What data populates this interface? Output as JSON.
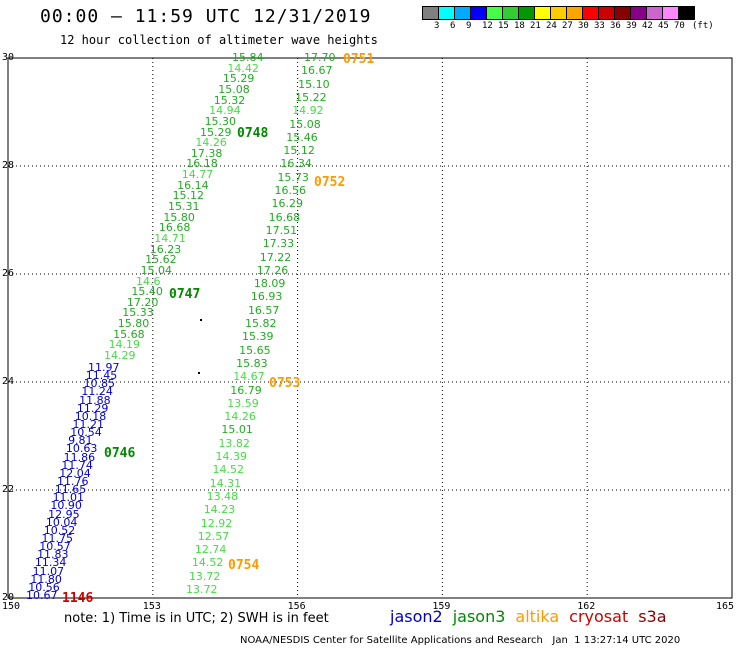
{
  "title": "00:00 – 11:59 UTC 12/31/2019",
  "subtitle": "12 hour collection of altimeter wave heights",
  "colorbar": {
    "labels": [
      "3",
      "6",
      "9",
      "12",
      "15",
      "18",
      "21",
      "24",
      "27",
      "30",
      "33",
      "36",
      "39",
      "42",
      "45",
      "70",
      "(ft)"
    ],
    "colors": [
      "#808080",
      "#00ffff",
      "#00aaff",
      "#0000ff",
      "#44ff44",
      "#33cc33",
      "#009900",
      "#ffff00",
      "#ffcc00",
      "#ffa500",
      "#ff0000",
      "#cc0000",
      "#880000",
      "#880088",
      "#cc66cc",
      "#ff88ff",
      "#000000"
    ]
  },
  "axes": {
    "lat_ticks": [
      "30",
      "28",
      "26",
      "24",
      "22",
      "20"
    ],
    "lon_ticks": [
      "150",
      "153",
      "156",
      "159",
      "162",
      "165"
    ]
  },
  "passes": [
    {
      "id": "0751",
      "color": "#ff9900"
    },
    {
      "id": "0748",
      "color": "#008800"
    },
    {
      "id": "0752",
      "color": "#ff9900"
    },
    {
      "id": "0747",
      "color": "#008800"
    },
    {
      "id": "0753",
      "color": "#ff9900"
    },
    {
      "id": "0746",
      "color": "#008800"
    },
    {
      "id": "0754",
      "color": "#ff9900"
    },
    {
      "id": "1146",
      "color": "#cc0000"
    }
  ],
  "tracks": {
    "west_a": [
      "15.84",
      "14.42",
      "15.29",
      "15.08",
      "15.32",
      "14.94",
      "15.30",
      "15.29",
      "14.26",
      "17.38",
      "16.18",
      "14.77",
      "16.14",
      "15.12",
      "15.31",
      "15.80",
      "16.68",
      "14.71",
      "16.23",
      "15.62",
      "15.04",
      "14.6",
      "15.40",
      "17.20",
      "15.33",
      "15.80",
      "15.68",
      "14.19",
      "14.29"
    ],
    "west_b": [
      "11.97",
      "11.45",
      "10.85",
      "11.24",
      "11.88",
      "11.29",
      "10.18",
      "11.21",
      "10.54",
      "9.81",
      "10.63",
      "11.86",
      "11.74",
      "12.04",
      "11.76",
      "11.65",
      "11.01",
      "10.90",
      "12.95",
      "10.04",
      "10.52",
      "11.75",
      "10.57",
      "11.83",
      "11.34",
      "11.07",
      "11.80",
      "10.56",
      "10.67"
    ],
    "east": [
      "17.70",
      "16.67",
      "15.10",
      "15.22",
      "14.92",
      "15.08",
      "15.46",
      "15.12",
      "16.34",
      "15.73",
      "16.56",
      "16.29",
      "16.68",
      "17.51",
      "17.33",
      "17.22",
      "17.26",
      "18.09",
      "16.93",
      "16.57",
      "15.82",
      "15.39",
      "15.65",
      "15.83",
      "14.67",
      "16.79",
      "13.59",
      "14.26",
      "15.01",
      "13.82",
      "14.39",
      "14.52",
      "14.31",
      "13.48",
      "14.23",
      "12.92",
      "12.57",
      "12.74",
      "14.52",
      "13.72",
      "13.72"
    ]
  },
  "note": "note:  1) Time is in UTC;  2) SWH is in feet",
  "legend": [
    {
      "name": "jason2",
      "color": "#0000cc"
    },
    {
      "name": "jason3",
      "color": "#008800"
    },
    {
      "name": "altika",
      "color": "#ff9900"
    },
    {
      "name": "cryosat",
      "color": "#cc0000"
    },
    {
      "name": "s3a",
      "color": "#880000"
    }
  ],
  "credit": "NOAA/NESDIS Center for Satellite Applications and Research   Jan  1 13:27:14 UTC 2020"
}
